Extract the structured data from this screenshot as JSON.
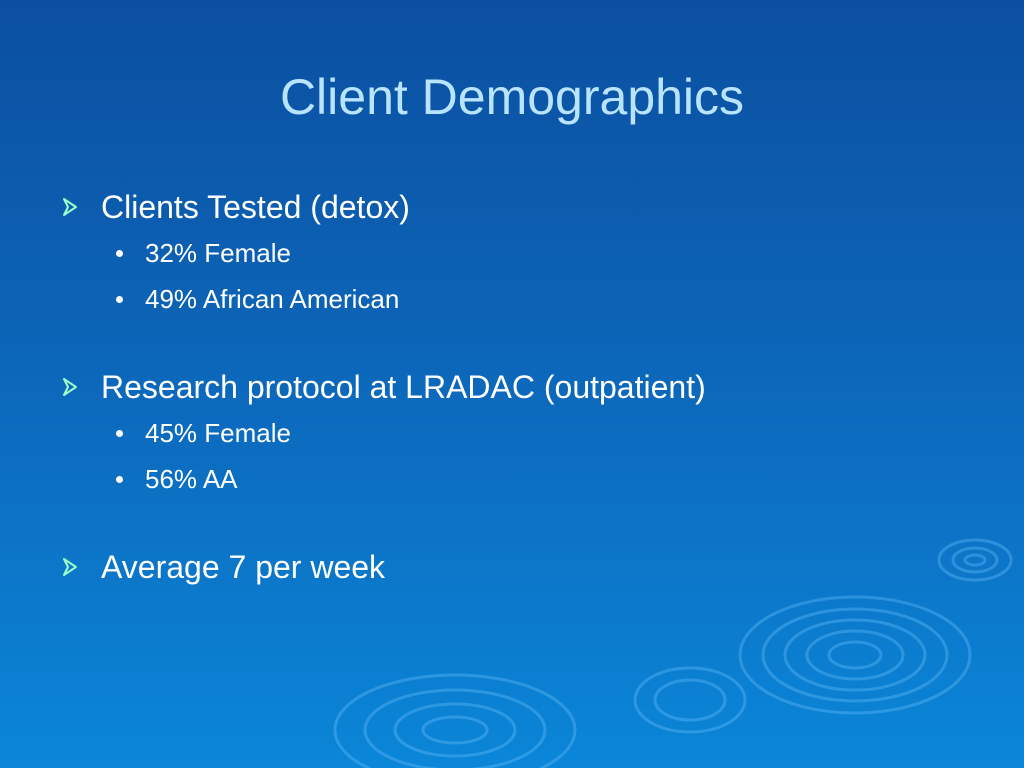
{
  "slide": {
    "title": "Client Demographics",
    "bullets": [
      {
        "text": "Clients Tested (detox)",
        "items": [
          "32% Female",
          "49% African American"
        ]
      },
      {
        "text": "Research protocol at LRADAC (outpatient)",
        "items": [
          "45% Female",
          "56% AA"
        ]
      },
      {
        "text": "Average 7 per week",
        "items": []
      }
    ]
  }
}
